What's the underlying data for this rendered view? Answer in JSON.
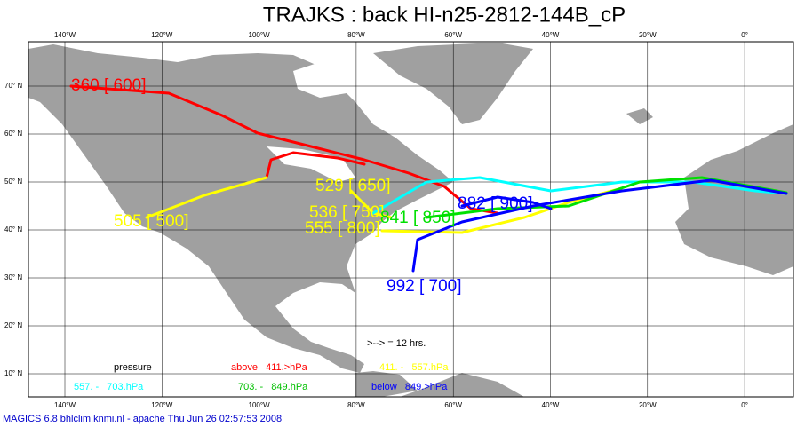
{
  "title": "TRAJKS : back HI-n25-2812-144B_cP",
  "lon_labels": [
    "140°W",
    "120°W",
    "100°W",
    "80°W",
    "60°W",
    "40°W",
    "20°W",
    "0°"
  ],
  "lat_labels": [
    "70° N",
    "60° N",
    "50° N",
    "40° N",
    "30° N",
    "20° N",
    "10° N"
  ],
  "trajectory_labels": [
    {
      "text": "360 [ 600]",
      "color": "#ff0000"
    },
    {
      "text": "505 [ 500]",
      "color": "#ffff00"
    },
    {
      "text": "529 [ 650]",
      "color": "#ffff00"
    },
    {
      "text": "536 [ 750]",
      "color": "#ffff00"
    },
    {
      "text": "555 [ 800]",
      "color": "#ffff00"
    },
    {
      "text": "841 [ 850]",
      "color": "#00e000"
    },
    {
      "text": "882 [ 900]",
      "color": "#0000ff"
    },
    {
      "text": "992 [ 700]",
      "color": "#0000ff"
    }
  ],
  "legend": {
    "interval": ">--> = 12 hrs.",
    "heading": "pressure",
    "items": [
      {
        "text": "above   411.>hPa",
        "color": "#ff0000"
      },
      {
        "text": "411. -   557.hPa",
        "color": "#ffff00"
      },
      {
        "text": "557. -   703.hPa",
        "color": "#00ffff"
      },
      {
        "text": "703. -   849.hPa",
        "color": "#00c000"
      },
      {
        "text": "below   849.>hPa",
        "color": "#0000ff"
      }
    ]
  },
  "footer": "MAGICS 6.8 bhlclim.knmi.nl - apache Thu Jun 26 02:57:53 2008"
}
